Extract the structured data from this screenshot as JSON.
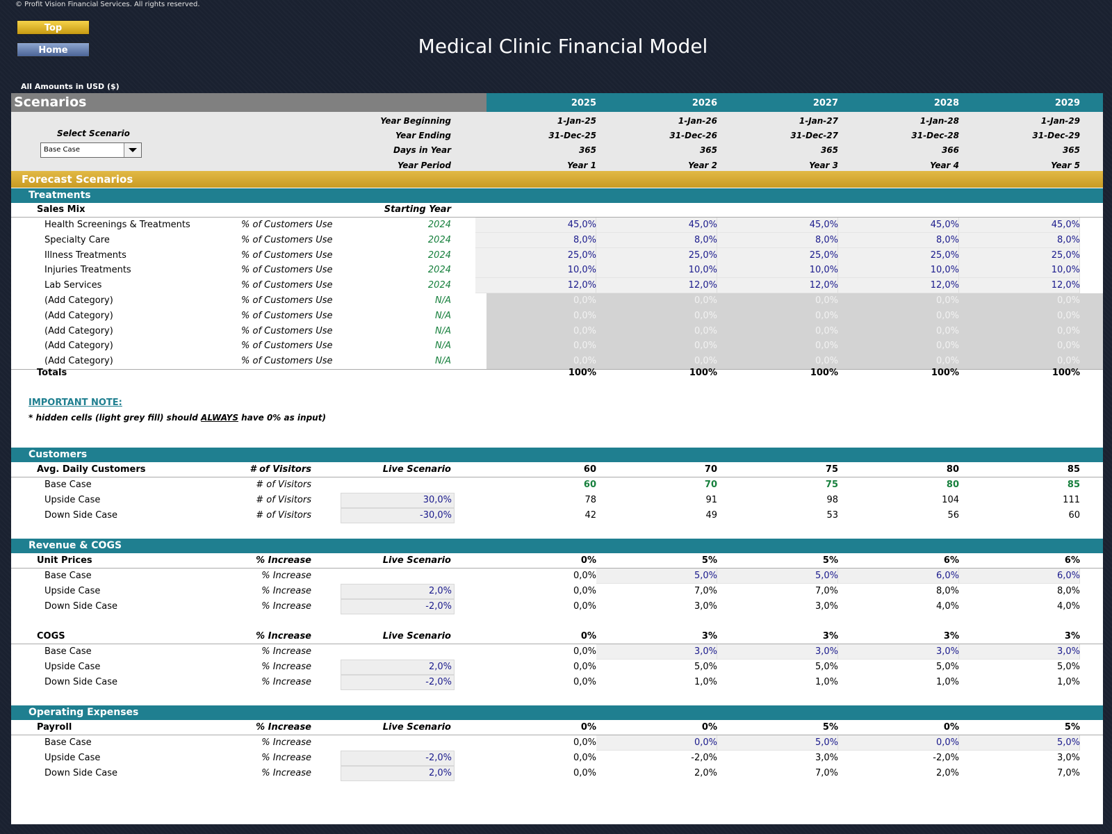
{
  "copyright": "© Profit Vision Financial Services. All rights reserved.",
  "nav": {
    "top_label": "Top",
    "home_label": "Home"
  },
  "title": "Medical Clinic Financial Model",
  "amounts_label": "All Amounts in  USD ($)",
  "scenarios": {
    "label": "Scenarios",
    "years": [
      "2025",
      "2026",
      "2027",
      "2028",
      "2029"
    ],
    "select_label": "Select Scenario",
    "selected": "Base Case",
    "rows": [
      {
        "label": "Year Beginning",
        "values": [
          "1-Jan-25",
          "1-Jan-26",
          "1-Jan-27",
          "1-Jan-28",
          "1-Jan-29"
        ]
      },
      {
        "label": "Year Ending",
        "values": [
          "31-Dec-25",
          "31-Dec-26",
          "31-Dec-27",
          "31-Dec-28",
          "31-Dec-29"
        ]
      },
      {
        "label": "Days in Year",
        "values": [
          "365",
          "365",
          "365",
          "366",
          "365"
        ]
      },
      {
        "label": "Year Period",
        "values": [
          "Year 1",
          "Year 2",
          "Year 3",
          "Year 4",
          "Year 5"
        ]
      }
    ]
  },
  "forecast_title": "Forecast Scenarios",
  "treatments": {
    "title": "Treatments",
    "sales_mix_label": "Sales Mix",
    "starting_year_label": "Starting Year",
    "rows": [
      {
        "name": "Health Screenings & Treatments",
        "unit": "% of Customers Use",
        "start": "2024",
        "values": [
          "45,0%",
          "45,0%",
          "45,0%",
          "45,0%",
          "45,0%"
        ]
      },
      {
        "name": "Specialty Care",
        "unit": "% of Customers Use",
        "start": "2024",
        "values": [
          "8,0%",
          "8,0%",
          "8,0%",
          "8,0%",
          "8,0%"
        ]
      },
      {
        "name": "Illness Treatments",
        "unit": "% of Customers Use",
        "start": "2024",
        "values": [
          "25,0%",
          "25,0%",
          "25,0%",
          "25,0%",
          "25,0%"
        ]
      },
      {
        "name": "Injuries Treatments",
        "unit": "% of Customers Use",
        "start": "2024",
        "values": [
          "10,0%",
          "10,0%",
          "10,0%",
          "10,0%",
          "10,0%"
        ]
      },
      {
        "name": "Lab Services",
        "unit": "% of Customers Use",
        "start": "2024",
        "values": [
          "12,0%",
          "12,0%",
          "12,0%",
          "12,0%",
          "12,0%"
        ]
      },
      {
        "name": "(Add Category)",
        "unit": "% of Customers Use",
        "start": "N/A",
        "values": [
          "0,0%",
          "0,0%",
          "0,0%",
          "0,0%",
          "0,0%"
        ]
      },
      {
        "name": "(Add Category)",
        "unit": "% of Customers Use",
        "start": "N/A",
        "values": [
          "0,0%",
          "0,0%",
          "0,0%",
          "0,0%",
          "0,0%"
        ]
      },
      {
        "name": "(Add Category)",
        "unit": "% of Customers Use",
        "start": "N/A",
        "values": [
          "0,0%",
          "0,0%",
          "0,0%",
          "0,0%",
          "0,0%"
        ]
      },
      {
        "name": "(Add Category)",
        "unit": "% of Customers Use",
        "start": "N/A",
        "values": [
          "0,0%",
          "0,0%",
          "0,0%",
          "0,0%",
          "0,0%"
        ]
      },
      {
        "name": "(Add Category)",
        "unit": "% of Customers Use",
        "start": "N/A",
        "values": [
          "0,0%",
          "0,0%",
          "0,0%",
          "0,0%",
          "0,0%"
        ]
      }
    ],
    "totals_label": "Totals",
    "totals": [
      "100%",
      "100%",
      "100%",
      "100%",
      "100%"
    ]
  },
  "note": {
    "title": "IMPORTANT NOTE:",
    "text_before": "* hidden cells (light grey fill) should ",
    "text_emph": "ALWAYS",
    "text_after": " have 0% as input)"
  },
  "sections": [
    {
      "title": "Customers",
      "groups": [
        {
          "header": {
            "name": "Avg. Daily Customers",
            "unit": "# of Visitors",
            "live": "Live Scenario",
            "values": [
              "60",
              "70",
              "75",
              "80",
              "85"
            ]
          },
          "rows": [
            {
              "name": "Base Case",
              "unit": "# of Visitors",
              "input": "",
              "values": [
                "60",
                "70",
                "75",
                "80",
                "85"
              ]
            },
            {
              "name": "Upside Case",
              "unit": "# of Visitors",
              "input": "30,0%",
              "values": [
                "78",
                "91",
                "98",
                "104",
                "111"
              ]
            },
            {
              "name": "Down Side Case",
              "unit": "# of Visitors",
              "input": "-30,0%",
              "values": [
                "42",
                "49",
                "53",
                "56",
                "60"
              ]
            }
          ]
        }
      ]
    },
    {
      "title": "Revenue & COGS",
      "groups": [
        {
          "header": {
            "name": "Unit Prices",
            "unit": "% Increase",
            "live": "Live Scenario",
            "values": [
              "0%",
              "5%",
              "5%",
              "6%",
              "6%"
            ]
          },
          "rows": [
            {
              "name": "Base Case",
              "unit": "% Increase",
              "input": "",
              "values": [
                "0,0%",
                "5,0%",
                "5,0%",
                "6,0%",
                "6,0%"
              ]
            },
            {
              "name": "Upside Case",
              "unit": "% Increase",
              "input": "2,0%",
              "values": [
                "0,0%",
                "7,0%",
                "7,0%",
                "8,0%",
                "8,0%"
              ]
            },
            {
              "name": "Down Side Case",
              "unit": "% Increase",
              "input": "-2,0%",
              "values": [
                "0,0%",
                "3,0%",
                "3,0%",
                "4,0%",
                "4,0%"
              ]
            }
          ]
        },
        {
          "header": {
            "name": "COGS",
            "unit": "% Increase",
            "live": "Live Scenario",
            "values": [
              "0%",
              "3%",
              "3%",
              "3%",
              "3%"
            ]
          },
          "rows": [
            {
              "name": "Base Case",
              "unit": "% Increase",
              "input": "",
              "values": [
                "0,0%",
                "3,0%",
                "3,0%",
                "3,0%",
                "3,0%"
              ]
            },
            {
              "name": "Upside Case",
              "unit": "% Increase",
              "input": "2,0%",
              "values": [
                "0,0%",
                "5,0%",
                "5,0%",
                "5,0%",
                "5,0%"
              ]
            },
            {
              "name": "Down Side Case",
              "unit": "% Increase",
              "input": "-2,0%",
              "values": [
                "0,0%",
                "1,0%",
                "1,0%",
                "1,0%",
                "1,0%"
              ]
            }
          ]
        }
      ]
    },
    {
      "title": "Operating Expenses",
      "groups": [
        {
          "header": {
            "name": "Payroll",
            "unit": "% Increase",
            "live": "Live Scenario",
            "values": [
              "0%",
              "0%",
              "5%",
              "0%",
              "5%"
            ]
          },
          "rows": [
            {
              "name": "Base Case",
              "unit": "% Increase",
              "input": "",
              "values": [
                "0,0%",
                "0,0%",
                "5,0%",
                "0,0%",
                "5,0%"
              ]
            },
            {
              "name": "Upside Case",
              "unit": "% Increase",
              "input": "-2,0%",
              "values": [
                "0,0%",
                "-2,0%",
                "3,0%",
                "-2,0%",
                "3,0%"
              ]
            },
            {
              "name": "Down Side Case",
              "unit": "% Increase",
              "input": "2,0%",
              "values": [
                "0,0%",
                "2,0%",
                "7,0%",
                "2,0%",
                "7,0%"
              ]
            }
          ]
        }
      ]
    }
  ]
}
